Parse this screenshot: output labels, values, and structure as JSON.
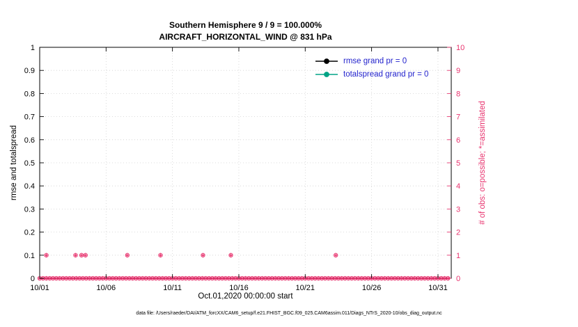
{
  "footer": "data file: /Users/raeder/DAI/ATM_forcXX/CAM6_setup/f.e21.FHIST_BGC.f09_025.CAM6assim.011/Diags_NTrS_2020-10/obs_diag_output.nc",
  "chart_data": {
    "type": "scatter",
    "title": "Southern Hemisphere 9 / 9 = 100.000%",
    "subtitle": "AIRCRAFT_HORIZONTAL_WIND @ 831 hPa",
    "xlabel": "Oct.01,2020 00:00:00 start",
    "ylabel_left": "rmse and totalspread",
    "ylabel_right": "# of obs: o=possible; *=assimilated",
    "xlim_days": [
      0,
      31
    ],
    "xticks": [
      {
        "day": 0,
        "label": "10/01"
      },
      {
        "day": 5,
        "label": "10/06"
      },
      {
        "day": 10,
        "label": "10/11"
      },
      {
        "day": 15,
        "label": "10/16"
      },
      {
        "day": 20,
        "label": "10/21"
      },
      {
        "day": 25,
        "label": "10/26"
      },
      {
        "day": 30,
        "label": "10/31"
      }
    ],
    "ylim_left": [
      0,
      1
    ],
    "yticks_left": [
      {
        "v": 0,
        "label": "0"
      },
      {
        "v": 0.1,
        "label": "0.1"
      },
      {
        "v": 0.2,
        "label": "0.2"
      },
      {
        "v": 0.3,
        "label": "0.3"
      },
      {
        "v": 0.4,
        "label": "0.4"
      },
      {
        "v": 0.5,
        "label": "0.5"
      },
      {
        "v": 0.6,
        "label": "0.6"
      },
      {
        "v": 0.7,
        "label": "0.7"
      },
      {
        "v": 0.8,
        "label": "0.8"
      },
      {
        "v": 0.9,
        "label": "0.9"
      },
      {
        "v": 1,
        "label": "1"
      }
    ],
    "ylim_right": [
      0,
      10
    ],
    "yticks_right": [
      {
        "v": 0,
        "label": "0"
      },
      {
        "v": 1,
        "label": "1"
      },
      {
        "v": 2,
        "label": "2"
      },
      {
        "v": 3,
        "label": "3"
      },
      {
        "v": 4,
        "label": "4"
      },
      {
        "v": 5,
        "label": "5"
      },
      {
        "v": 6,
        "label": "6"
      },
      {
        "v": 7,
        "label": "7"
      },
      {
        "v": 8,
        "label": "8"
      },
      {
        "v": 9,
        "label": "9"
      },
      {
        "v": 10,
        "label": "10"
      }
    ],
    "legend": [
      {
        "label": "rmse grand pr = 0",
        "color": "#000000"
      },
      {
        "label": "totalspread grand pr = 0",
        "color": "#00a385"
      }
    ],
    "legend_text_color": "#2222cc",
    "marker_color": "#e8336e",
    "grid": true,
    "series": {
      "obs_counts": {
        "note": "possible (o) and assimilated (*) markers plotted on right axis",
        "at_one_days": [
          0.5,
          2.7,
          3.15,
          3.45,
          6.6,
          9.1,
          12.3,
          14.4,
          22.3
        ],
        "at_zero": {
          "start_day": 0,
          "end_day": 30.9,
          "step_day": 0.25
        }
      },
      "rmse": {
        "values": []
      },
      "totalspread": {
        "values": []
      }
    }
  }
}
